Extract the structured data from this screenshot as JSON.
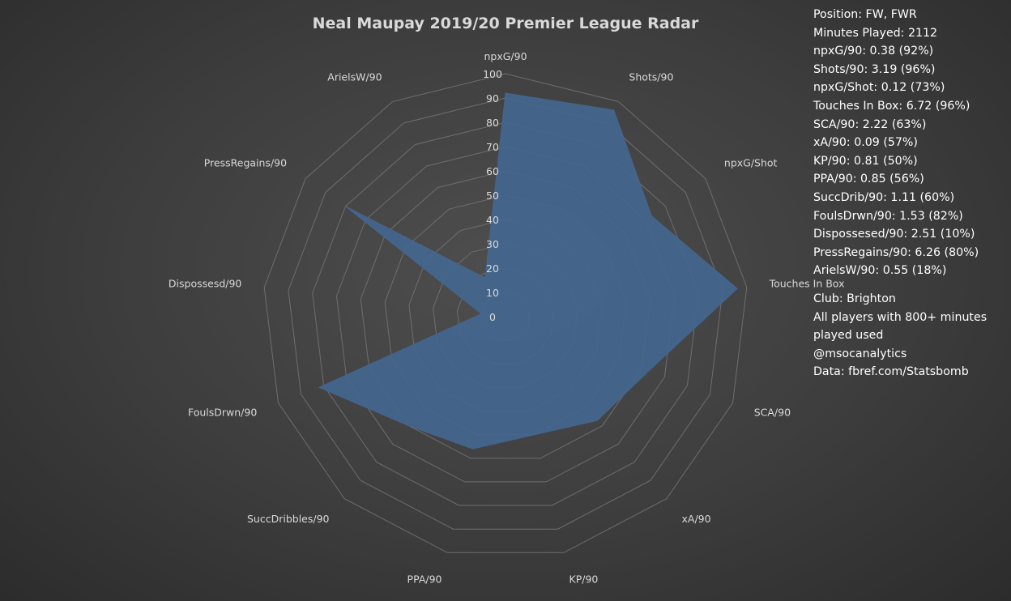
{
  "chart_data": {
    "type": "radar",
    "title": "Neal Maupay 2019/20 Premier League Radar",
    "categories": [
      "npxG/90",
      "Shots/90",
      "npxG/Shot",
      "Touches In Box",
      "SCA/90",
      "xA/90",
      "KP/90",
      "PPA/90",
      "SuccDribbles/90",
      "FoulsDrwn/90",
      "Dispossesd/90",
      "PressRegains/90",
      "ArielsW/90"
    ],
    "series": [
      {
        "values": [
          92,
          96,
          73,
          96,
          63,
          57,
          50,
          56,
          60,
          82,
          10,
          80,
          18
        ]
      }
    ],
    "rlim": [
      0,
      100
    ],
    "r_ticks": [
      0,
      10,
      20,
      30,
      40,
      50,
      60,
      70,
      80,
      90,
      100
    ],
    "grid": true,
    "colors": {
      "area": "#44668f",
      "grid": "#6e6e6e",
      "text": "#d9d9d9"
    }
  },
  "info": {
    "position": "Position: FW, FWR",
    "minutes": "Minutes Played: 2112",
    "stats": [
      "npxG/90: 0.38 (92%)",
      "Shots/90: 3.19 (96%)",
      "npxG/Shot: 0.12 (73%)",
      "Touches In Box: 6.72 (96%)",
      "SCA/90: 2.22 (63%)",
      "xA/90: 0.09 (57%)",
      "KP/90: 0.81 (50%)",
      "PPA/90: 0.85 (56%)",
      "SuccDrib/90: 1.11 (60%)",
      "FoulsDrwn/90: 1.53 (82%)",
      "Dispossesed/90: 2.51 (10%)",
      "PressRegains/90: 6.26 (80%)",
      "ArielsW/90: 0.55 (18%)"
    ],
    "club": "Club: Brighton",
    "note": "All players with 800+ minutes played used",
    "handle": "@msocanalytics",
    "source": "Data: fbref.com/Statsbomb"
  }
}
